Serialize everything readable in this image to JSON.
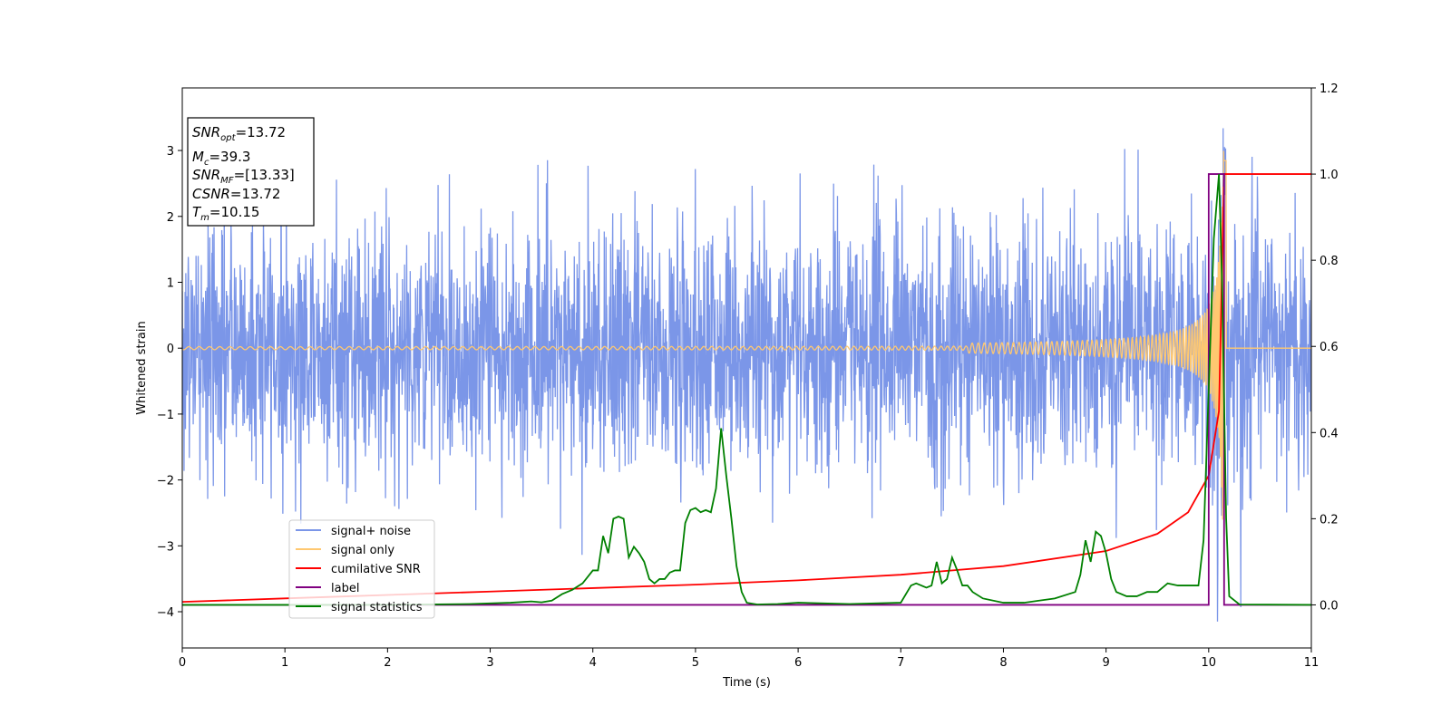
{
  "chart_data": {
    "type": "line",
    "xlabel": "Time (s)",
    "ylabel": "Whitened strain",
    "xlim": [
      0,
      11
    ],
    "ylim_left": [
      -4.55,
      3.95
    ],
    "ylim_right": [
      -0.1,
      1.2
    ],
    "x_ticks": [
      0,
      1,
      2,
      3,
      4,
      5,
      6,
      7,
      8,
      9,
      10,
      11
    ],
    "y_ticks_left": [
      -4,
      -3,
      -2,
      -1,
      0,
      1,
      2,
      3
    ],
    "y_ticks_right": [
      0.0,
      0.2,
      0.4,
      0.6,
      0.8,
      1.0,
      1.2
    ],
    "y_tick_labels_left": [
      "−4",
      "−3",
      "−2",
      "−1",
      "0",
      "1",
      "2",
      "3"
    ],
    "y_tick_labels_right": [
      "0.0",
      "0.2",
      "0.4",
      "0.6",
      "0.8",
      "1.0",
      "1.2"
    ],
    "legend_placement": "lower-left",
    "info_box": {
      "snr_opt_name": "SNR",
      "snr_opt_sub": "opt",
      "snr_opt_value": "=13.72",
      "mc_name": "M",
      "mc_sub": "c",
      "mc_value": "=39.3",
      "snr_mf_name": "SNR",
      "snr_mf_sub": "MF",
      "snr_mf_value": "=[13.33]",
      "csnr_name": "CSNR",
      "csnr_value": "=13.72",
      "tm_name": "T",
      "tm_sub": "m",
      "tm_value": "=10.15"
    },
    "series": [
      {
        "name": "signal+ noise",
        "axis": "left",
        "color": "#7b96e8",
        "noise_std": 0.95,
        "peak_max": 3.6,
        "trough_min": -4.15
      },
      {
        "name": "signal only",
        "axis": "left",
        "color": "#ffc870",
        "merger_time": 10.15,
        "peak_amplitude": 3.0
      },
      {
        "name": "cumilative SNR",
        "axis": "right",
        "color": "#ff0000",
        "x": [
          0,
          1,
          2,
          3,
          4,
          5,
          6,
          7,
          8,
          9,
          9.5,
          9.8,
          10.0,
          10.1,
          10.15,
          11
        ],
        "y": [
          0.007,
          0.015,
          0.023,
          0.031,
          0.039,
          0.047,
          0.057,
          0.07,
          0.09,
          0.125,
          0.165,
          0.215,
          0.3,
          0.45,
          1.0,
          1.0
        ]
      },
      {
        "name": "label",
        "axis": "right",
        "color": "#800080",
        "x": [
          0,
          10.0,
          10.0,
          10.15,
          10.15,
          11
        ],
        "y": [
          0,
          0,
          1.0,
          1.0,
          0,
          0
        ]
      },
      {
        "name": "signal statistics",
        "axis": "right",
        "color": "#008000",
        "x": [
          0,
          1,
          2,
          2.8,
          3.2,
          3.4,
          3.5,
          3.6,
          3.7,
          3.8,
          3.9,
          4.0,
          4.05,
          4.1,
          4.15,
          4.2,
          4.25,
          4.3,
          4.35,
          4.4,
          4.45,
          4.5,
          4.55,
          4.6,
          4.65,
          4.7,
          4.75,
          4.8,
          4.85,
          4.9,
          4.95,
          5.0,
          5.05,
          5.1,
          5.15,
          5.2,
          5.25,
          5.3,
          5.35,
          5.4,
          5.45,
          5.5,
          5.6,
          5.8,
          6.0,
          6.5,
          7.0,
          7.1,
          7.15,
          7.2,
          7.25,
          7.3,
          7.35,
          7.4,
          7.45,
          7.5,
          7.55,
          7.6,
          7.65,
          7.7,
          7.8,
          8.0,
          8.2,
          8.5,
          8.7,
          8.75,
          8.8,
          8.85,
          8.9,
          8.95,
          9.0,
          9.05,
          9.1,
          9.2,
          9.3,
          9.4,
          9.5,
          9.6,
          9.7,
          9.8,
          9.9,
          9.95,
          10.0,
          10.05,
          10.1,
          10.13,
          10.17,
          10.2,
          10.3,
          11
        ],
        "y": [
          0,
          0,
          0,
          0.002,
          0.005,
          0.008,
          0.006,
          0.01,
          0.025,
          0.035,
          0.05,
          0.08,
          0.08,
          0.16,
          0.12,
          0.2,
          0.205,
          0.2,
          0.11,
          0.135,
          0.12,
          0.1,
          0.06,
          0.05,
          0.06,
          0.06,
          0.075,
          0.08,
          0.08,
          0.19,
          0.22,
          0.225,
          0.215,
          0.22,
          0.215,
          0.27,
          0.41,
          0.3,
          0.2,
          0.09,
          0.03,
          0.005,
          0.001,
          0.002,
          0.005,
          0.002,
          0.005,
          0.045,
          0.05,
          0.045,
          0.04,
          0.045,
          0.1,
          0.05,
          0.06,
          0.11,
          0.08,
          0.045,
          0.045,
          0.03,
          0.015,
          0.005,
          0.005,
          0.015,
          0.03,
          0.07,
          0.15,
          0.1,
          0.17,
          0.16,
          0.12,
          0.06,
          0.03,
          0.02,
          0.02,
          0.03,
          0.03,
          0.05,
          0.045,
          0.045,
          0.045,
          0.15,
          0.5,
          0.85,
          1.0,
          0.75,
          0.2,
          0.02,
          0.001,
          0
        ]
      }
    ]
  }
}
